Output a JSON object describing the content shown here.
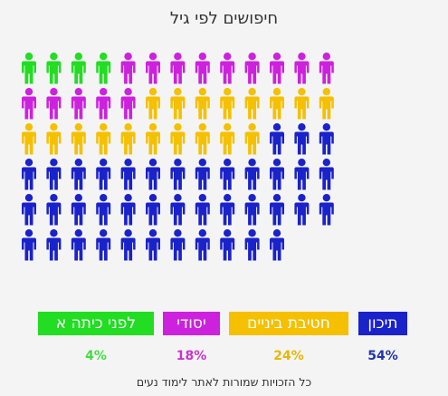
{
  "chart_data": {
    "type": "pictogram",
    "title": "חיפושים לפי גיל",
    "footnote": "כל הזכויות שמורות לאתר לימוד נעים",
    "grid": {
      "rows": 6,
      "cols": 13,
      "total_icons": 76
    },
    "series": [
      {
        "name": "לפני כיתה א",
        "percent_label": "4%",
        "value": 4,
        "icons": 4,
        "color": "#22dd22",
        "label_color": "#44dd44"
      },
      {
        "name": "יסודי",
        "percent_label": "18%",
        "value": 18,
        "icons": 14,
        "color": "#cc22dd",
        "label_color": "#cc33cc"
      },
      {
        "name": "חטיבת ביניים",
        "percent_label": "24%",
        "value": 24,
        "icons": 18,
        "color": "#f5c000",
        "label_color": "#e6b800"
      },
      {
        "name": "תיכון",
        "percent_label": "54%",
        "value": 54,
        "icons": 40,
        "color": "#1a22c9",
        "label_color": "#2233aa"
      }
    ]
  }
}
